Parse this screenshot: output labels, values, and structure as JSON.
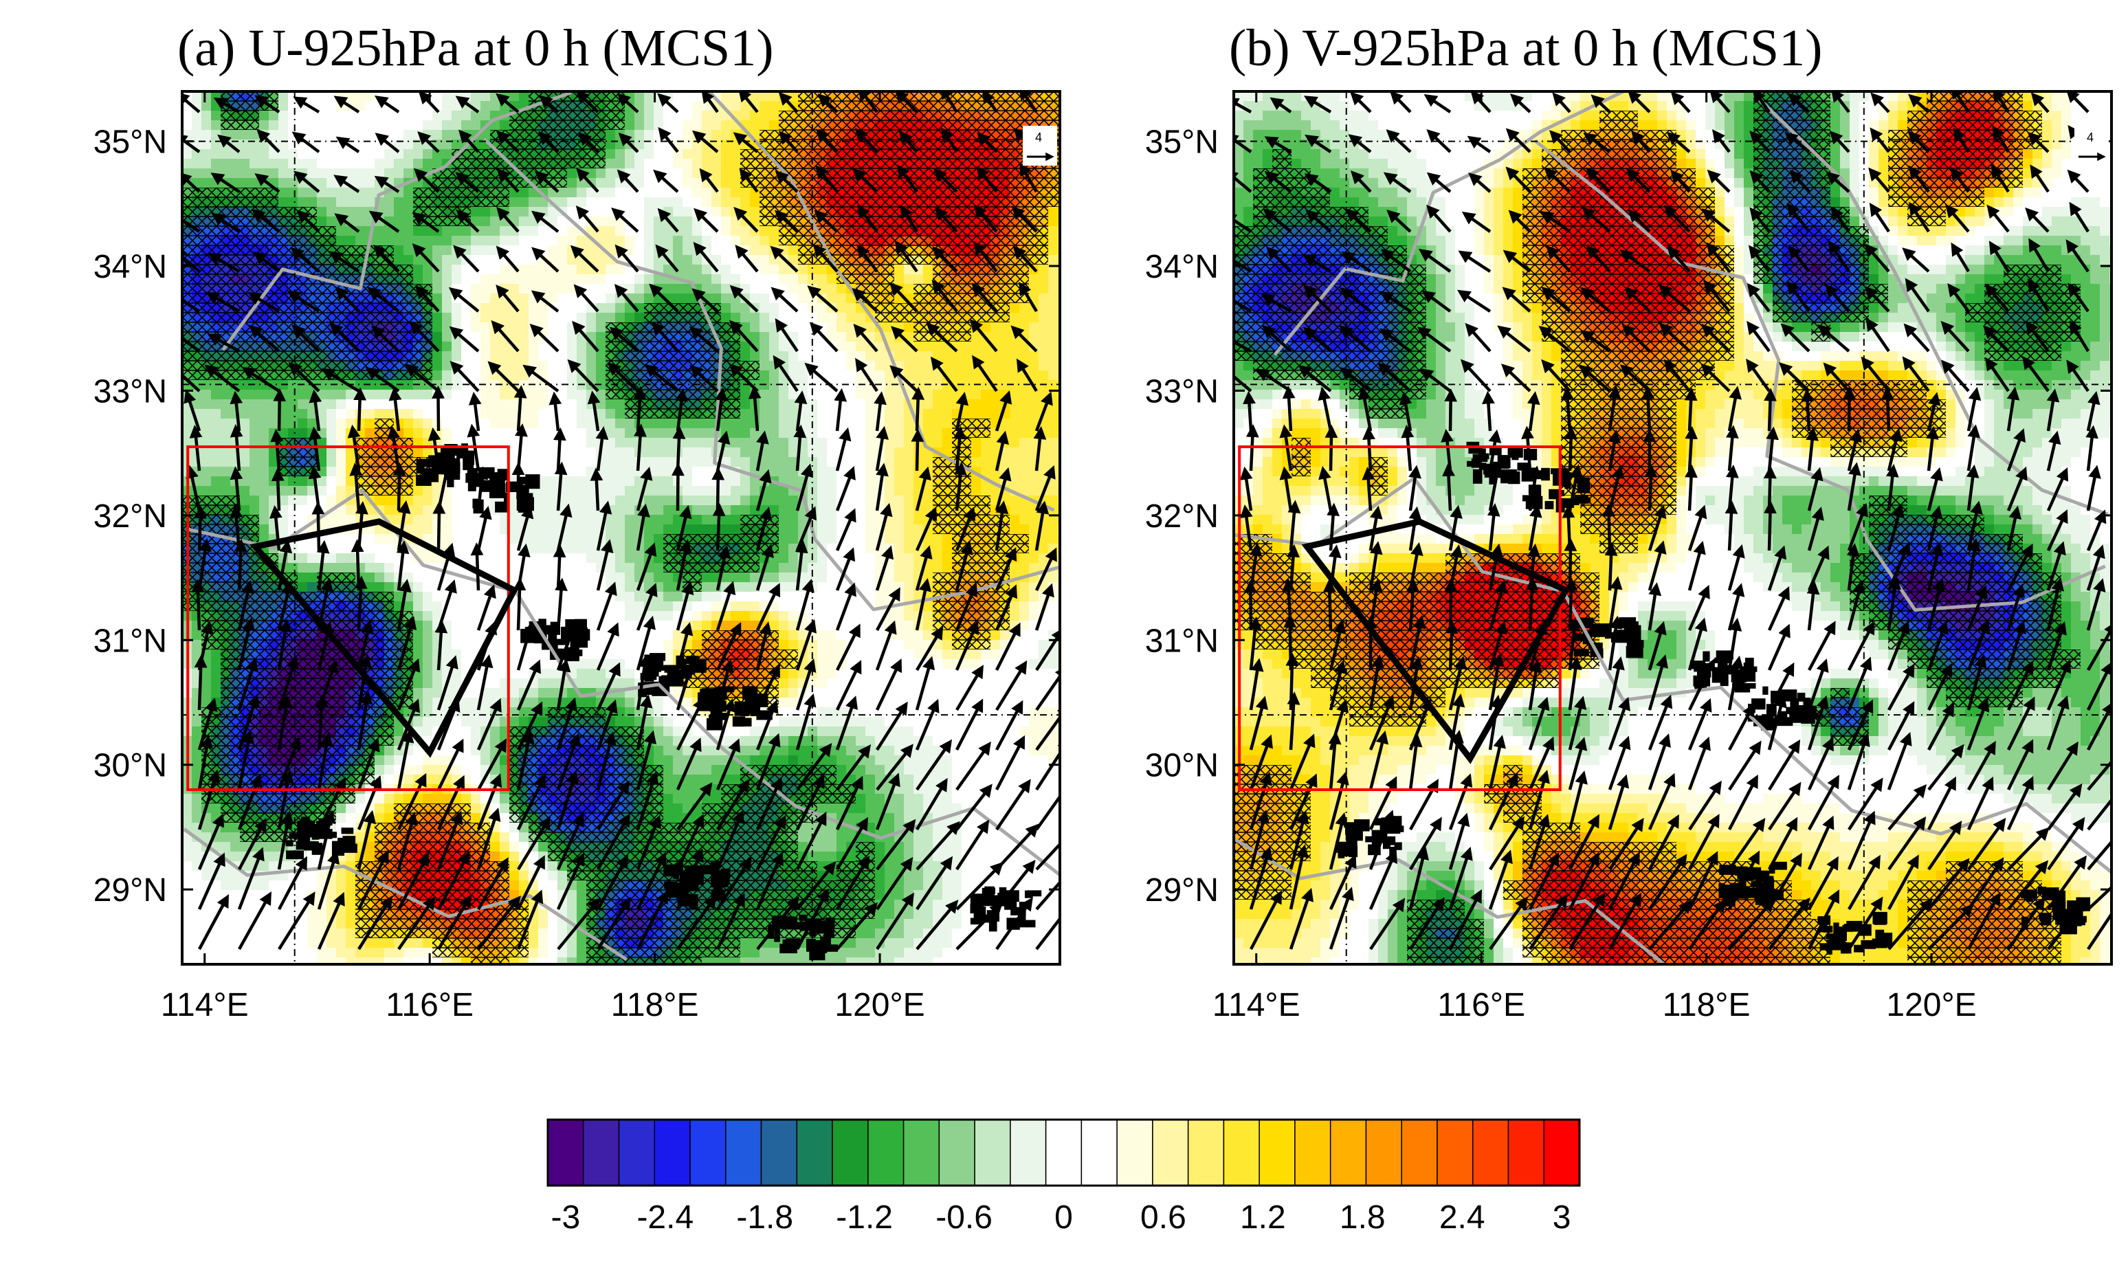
{
  "panels": [
    {
      "id": "a",
      "title": "(a)  U-925hPa at 0 h (MCS1)",
      "seed": 11
    },
    {
      "id": "b",
      "title": "(b)  V-925hPa at 0 h (MCS1)",
      "seed": 37
    }
  ],
  "axes": {
    "lat_labels": [
      "35°N",
      "34°N",
      "33°N",
      "32°N",
      "31°N",
      "30°N",
      "29°N"
    ],
    "lat_values": [
      35,
      34,
      33,
      32,
      31,
      30,
      29
    ],
    "lon_labels": [
      "114°E",
      "116°E",
      "118°E",
      "120°E"
    ],
    "lon_values": [
      114,
      116,
      118,
      120
    ],
    "lon_range": [
      113.8,
      121.6
    ],
    "lat_range": [
      28.4,
      35.4
    ]
  },
  "reference_vector": {
    "label": "4"
  },
  "red_box": {
    "lon": [
      113.85,
      116.7
    ],
    "lat": [
      29.8,
      32.55
    ]
  },
  "polygon_a": [
    [
      114.45,
      31.75
    ],
    [
      115.55,
      31.95
    ],
    [
      116.75,
      31.4
    ],
    [
      116.0,
      30.1
    ]
  ],
  "polygon_b": [
    [
      114.45,
      31.75
    ],
    [
      115.45,
      31.95
    ],
    [
      116.75,
      31.4
    ],
    [
      115.9,
      30.05
    ]
  ],
  "colorbar": {
    "labels": [
      "-3",
      "-2.4",
      "-1.8",
      "-1.2",
      "-0.6",
      "0",
      "0.6",
      "1.2",
      "1.8",
      "2.4",
      "3"
    ],
    "colors": [
      "#4b0082",
      "#3f1fa8",
      "#2b2bd0",
      "#1a1aee",
      "#1e3cf0",
      "#1f5ae0",
      "#23649c",
      "#18805a",
      "#1b9b2e",
      "#2fb03a",
      "#55c058",
      "#8fd28f",
      "#c5e8c5",
      "#eaf6ea",
      "#ffffff",
      "#ffffff",
      "#fffde0",
      "#fff6a8",
      "#fff070",
      "#ffe830",
      "#ffdd00",
      "#ffc800",
      "#ffb000",
      "#ff9800",
      "#ff7e00",
      "#ff6000",
      "#ff4400",
      "#ff2200",
      "#ff0000"
    ]
  }
}
